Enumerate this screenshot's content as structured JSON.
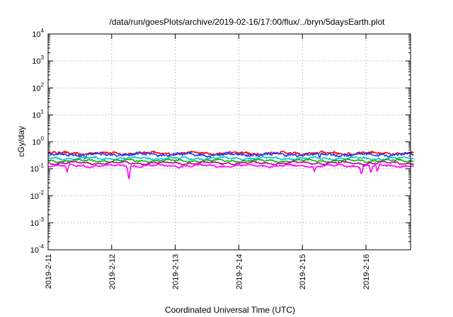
{
  "chart_data": {
    "type": "line",
    "title": "/data/run/goesPlots/archive/2019-02-16/17:00/flux/../bryn/5daysEarth.plot",
    "xlabel": "Coordinated Universal Time (UTC)",
    "ylabel": "cGy/day",
    "yscale": "log",
    "ylim": [
      0.0001,
      10000
    ],
    "xlim_days": [
      0,
      5.75
    ],
    "y_ticks": [
      {
        "base": "10",
        "exp": "-4",
        "value": 0.0001
      },
      {
        "base": "10",
        "exp": "-3",
        "value": 0.001
      },
      {
        "base": "10",
        "exp": "-2",
        "value": 0.01
      },
      {
        "base": "10",
        "exp": "-1",
        "value": 0.1
      },
      {
        "base": "10",
        "exp": "0",
        "value": 1
      },
      {
        "base": "10",
        "exp": "1",
        "value": 10
      },
      {
        "base": "10",
        "exp": "2",
        "value": 100
      },
      {
        "base": "10",
        "exp": "3",
        "value": 1000
      },
      {
        "base": "10",
        "exp": "4",
        "value": 10000
      }
    ],
    "x_ticks": [
      "2019-2-11",
      "2019-2-12",
      "2019-2-13",
      "2019-2-14",
      "2019-2-15",
      "2019-2-16"
    ],
    "grid": true,
    "legend": "none",
    "series": [
      {
        "color": "#ff0000",
        "level": 0.38,
        "noise": 0.09,
        "dips": []
      },
      {
        "color": "#1e3cff",
        "level": 0.34,
        "noise": 0.1,
        "dips": [
          [
            0.58,
            0.22
          ],
          [
            4.27,
            0.25
          ]
        ]
      },
      {
        "color": "#00c8c8",
        "level": 0.245,
        "noise": 0.06,
        "dips": []
      },
      {
        "color": "#00b400",
        "level": 0.2,
        "noise": 0.05,
        "dips": []
      },
      {
        "color": "#c00090",
        "level": 0.165,
        "noise": 0.05,
        "dips": []
      },
      {
        "color": "#ff00ff",
        "level": 0.13,
        "noise": 0.06,
        "dips": [
          [
            0.3,
            0.075
          ],
          [
            1.27,
            0.028
          ],
          [
            4.19,
            0.075
          ],
          [
            4.93,
            0.055
          ],
          [
            5.08,
            0.065
          ],
          [
            5.18,
            0.07
          ]
        ]
      }
    ]
  }
}
